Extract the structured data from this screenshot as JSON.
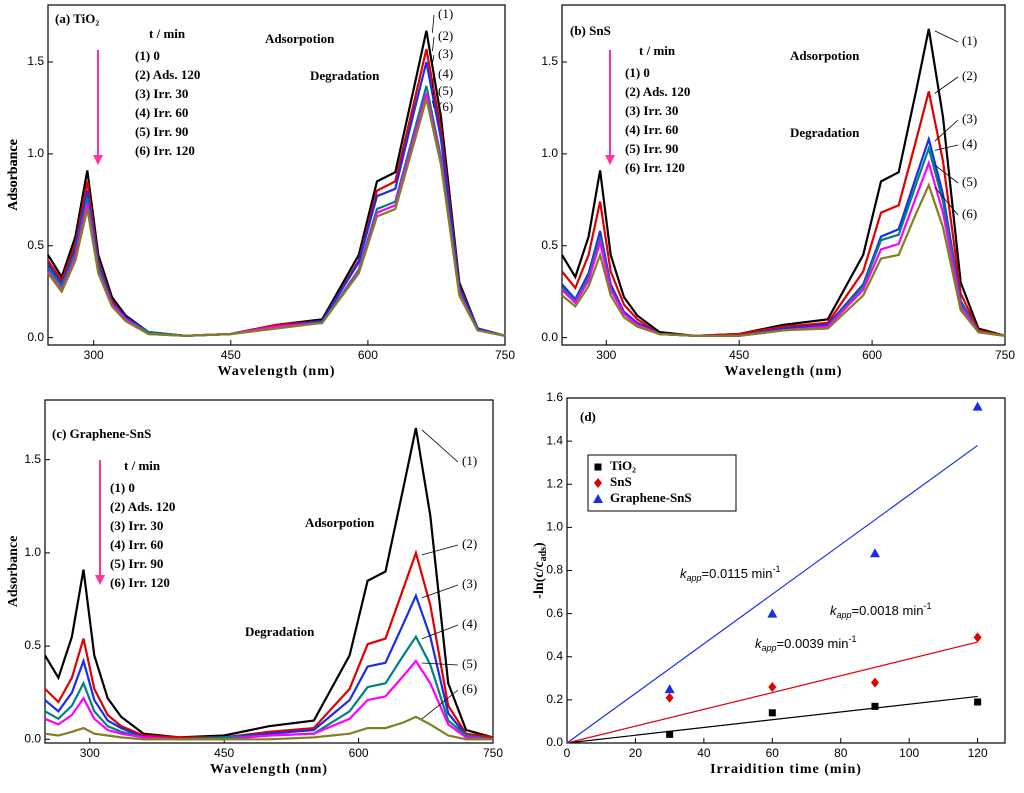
{
  "chart_data": [
    {
      "type": "line",
      "title": "(a) TiO₂",
      "xlabel": "Wavelength (nm)",
      "ylabel": "Adsorbance",
      "x": [
        250,
        265,
        280,
        293,
        305,
        320,
        335,
        360,
        400,
        450,
        500,
        550,
        590,
        610,
        630,
        650,
        664,
        680,
        700,
        720,
        750
      ],
      "xlim": [
        250,
        750
      ],
      "xticks": [
        300,
        450,
        600,
        750
      ],
      "ylim": [
        -0.04,
        1.81
      ],
      "yticks": [
        {
          "value": 0,
          "label": "0.0"
        },
        {
          "value": 0.5,
          "label": "0.5"
        },
        {
          "value": 1,
          "label": "1.0"
        },
        {
          "value": 1.5,
          "label": "1.5"
        }
      ],
      "legend_title": "t / min",
      "annotations": [
        "Adsorpotion",
        "Degradation"
      ],
      "series": [
        {
          "name": "(1) 0",
          "label": "(1)",
          "color": "#000000",
          "values": [
            0.45,
            0.33,
            0.55,
            0.91,
            0.45,
            0.22,
            0.12,
            0.03,
            0.01,
            0.02,
            0.07,
            0.1,
            0.45,
            0.85,
            0.9,
            1.35,
            1.67,
            1.2,
            0.3,
            0.05,
            0.01
          ]
        },
        {
          "name": "(2) Ads. 120",
          "label": "(2)",
          "color": "#e00000",
          "values": [
            0.42,
            0.31,
            0.51,
            0.85,
            0.42,
            0.2,
            0.11,
            0.03,
            0.01,
            0.02,
            0.07,
            0.09,
            0.42,
            0.8,
            0.85,
            1.27,
            1.57,
            1.13,
            0.28,
            0.05,
            0.01
          ]
        },
        {
          "name": "(3) Irr.   30",
          "label": "(3)",
          "color": "#1a2ee6",
          "values": [
            0.4,
            0.29,
            0.48,
            0.8,
            0.4,
            0.19,
            0.11,
            0.03,
            0.01,
            0.02,
            0.06,
            0.09,
            0.41,
            0.77,
            0.81,
            1.22,
            1.5,
            1.08,
            0.27,
            0.05,
            0.01
          ]
        },
        {
          "name": "(4) Irr.   60",
          "label": "(4)",
          "color": "#008080",
          "values": [
            0.38,
            0.28,
            0.46,
            0.76,
            0.38,
            0.18,
            0.1,
            0.03,
            0.01,
            0.02,
            0.06,
            0.08,
            0.37,
            0.7,
            0.74,
            1.11,
            1.37,
            0.98,
            0.25,
            0.04,
            0.01
          ]
        },
        {
          "name": "(5) Irr.   90",
          "label": "(5)",
          "color": "#ff00ff",
          "values": [
            0.36,
            0.26,
            0.44,
            0.73,
            0.36,
            0.18,
            0.1,
            0.02,
            0.01,
            0.02,
            0.06,
            0.08,
            0.36,
            0.68,
            0.72,
            1.08,
            1.33,
            0.96,
            0.24,
            0.04,
            0.01
          ]
        },
        {
          "name": "(6) Irr.   120",
          "label": "(6)",
          "color": "#808020",
          "values": [
            0.35,
            0.25,
            0.42,
            0.7,
            0.35,
            0.17,
            0.09,
            0.02,
            0.01,
            0.02,
            0.05,
            0.08,
            0.35,
            0.66,
            0.7,
            1.05,
            1.3,
            0.94,
            0.23,
            0.04,
            0.01
          ]
        }
      ]
    },
    {
      "type": "line",
      "title": "(b) SnS",
      "xlabel": "Wavelength (nm)",
      "ylabel": "Adsorbance",
      "x": [
        250,
        265,
        280,
        293,
        305,
        320,
        335,
        360,
        400,
        450,
        500,
        550,
        590,
        610,
        630,
        650,
        664,
        680,
        700,
        720,
        750
      ],
      "xlim": [
        250,
        750
      ],
      "xticks": [
        300,
        450,
        600,
        750
      ],
      "ylim": [
        -0.04,
        1.81
      ],
      "yticks": [
        {
          "value": 0,
          "label": "0.0"
        },
        {
          "value": 0.5,
          "label": "0.5"
        },
        {
          "value": 1,
          "label": "1.0"
        },
        {
          "value": 1.5,
          "label": "1.5"
        }
      ],
      "legend_title": "t / min",
      "annotations": [
        "Adsorpotion",
        "Degradation"
      ],
      "series": [
        {
          "name": "(1) 0",
          "label": "(1)",
          "color": "#000000",
          "values": [
            0.45,
            0.33,
            0.55,
            0.91,
            0.45,
            0.22,
            0.12,
            0.03,
            0.01,
            0.02,
            0.07,
            0.1,
            0.45,
            0.85,
            0.9,
            1.35,
            1.68,
            1.2,
            0.3,
            0.05,
            0.01
          ]
        },
        {
          "name": "(2) Ads. 120",
          "label": "(2)",
          "color": "#e00000",
          "values": [
            0.36,
            0.27,
            0.45,
            0.74,
            0.36,
            0.18,
            0.1,
            0.02,
            0.01,
            0.02,
            0.06,
            0.08,
            0.36,
            0.68,
            0.72,
            1.08,
            1.34,
            0.96,
            0.24,
            0.04,
            0.01
          ]
        },
        {
          "name": "(3) Irr.   30",
          "label": "(3)",
          "color": "#1a2ee6",
          "values": [
            0.29,
            0.21,
            0.35,
            0.58,
            0.29,
            0.14,
            0.08,
            0.02,
            0.01,
            0.01,
            0.05,
            0.07,
            0.29,
            0.55,
            0.59,
            0.88,
            1.08,
            0.78,
            0.2,
            0.03,
            0.01
          ]
        },
        {
          "name": "(4) Irr.   60",
          "label": "(4)",
          "color": "#008080",
          "values": [
            0.27,
            0.2,
            0.33,
            0.55,
            0.27,
            0.13,
            0.07,
            0.02,
            0.01,
            0.01,
            0.04,
            0.06,
            0.28,
            0.53,
            0.56,
            0.84,
            1.03,
            0.74,
            0.19,
            0.03,
            0.01
          ]
        },
        {
          "name": "(5) Irr.   90",
          "label": "(5)",
          "color": "#ff00ff",
          "values": [
            0.26,
            0.19,
            0.31,
            0.52,
            0.26,
            0.13,
            0.07,
            0.02,
            0.01,
            0.01,
            0.04,
            0.06,
            0.26,
            0.48,
            0.51,
            0.77,
            0.95,
            0.68,
            0.17,
            0.03,
            0.01
          ]
        },
        {
          "name": "(6) Irr.   120",
          "label": "(6)",
          "color": "#808020",
          "values": [
            0.23,
            0.17,
            0.28,
            0.45,
            0.23,
            0.11,
            0.06,
            0.02,
            0.01,
            0.01,
            0.04,
            0.05,
            0.23,
            0.43,
            0.45,
            0.68,
            0.83,
            0.6,
            0.15,
            0.03,
            0.01
          ]
        }
      ]
    },
    {
      "type": "line",
      "title": "(c) Graphene-SnS",
      "xlabel": "Wavelength (nm)",
      "ylabel": "Adsorbance",
      "x": [
        250,
        265,
        280,
        293,
        305,
        320,
        335,
        360,
        400,
        450,
        500,
        550,
        590,
        610,
        630,
        650,
        664,
        680,
        700,
        720,
        750
      ],
      "xlim": [
        250,
        750
      ],
      "xticks": [
        300,
        450,
        600,
        750
      ],
      "ylim": [
        -0.02,
        1.82
      ],
      "yticks": [
        {
          "value": 0,
          "label": "0.0"
        },
        {
          "value": 0.5,
          "label": "0.5"
        },
        {
          "value": 1,
          "label": "1.0"
        },
        {
          "value": 1.5,
          "label": "1.5"
        }
      ],
      "legend_title": "t / min",
      "annotations": [
        "Adsorpotion",
        "Degradation"
      ],
      "series": [
        {
          "name": "(1) 0",
          "label": "(1)",
          "color": "#000000",
          "values": [
            0.45,
            0.33,
            0.55,
            0.91,
            0.45,
            0.22,
            0.12,
            0.03,
            0.01,
            0.02,
            0.07,
            0.1,
            0.45,
            0.85,
            0.9,
            1.35,
            1.67,
            1.2,
            0.3,
            0.05,
            0.01
          ]
        },
        {
          "name": "(2) Ads. 120",
          "label": "(2)",
          "color": "#e00000",
          "values": [
            0.27,
            0.2,
            0.33,
            0.54,
            0.27,
            0.13,
            0.07,
            0.02,
            0.01,
            0.01,
            0.04,
            0.06,
            0.27,
            0.51,
            0.54,
            0.81,
            1.0,
            0.72,
            0.18,
            0.03,
            0.01
          ]
        },
        {
          "name": "(3) Irr.   30",
          "label": "(3)",
          "color": "#1a2ee6",
          "values": [
            0.21,
            0.15,
            0.25,
            0.42,
            0.21,
            0.1,
            0.06,
            0.01,
            0,
            0.01,
            0.03,
            0.05,
            0.21,
            0.39,
            0.41,
            0.62,
            0.77,
            0.55,
            0.14,
            0.02,
            0
          ]
        },
        {
          "name": "(4) Irr.   60",
          "label": "(4)",
          "color": "#008080",
          "values": [
            0.15,
            0.11,
            0.18,
            0.3,
            0.15,
            0.07,
            0.04,
            0.01,
            0,
            0.01,
            0.02,
            0.03,
            0.15,
            0.28,
            0.3,
            0.45,
            0.55,
            0.4,
            0.1,
            0.02,
            0
          ]
        },
        {
          "name": "(5) Irr.   90",
          "label": "(5)",
          "color": "#ff00ff",
          "values": [
            0.11,
            0.08,
            0.13,
            0.22,
            0.11,
            0.05,
            0.03,
            0.01,
            0,
            0,
            0.02,
            0.03,
            0.11,
            0.21,
            0.23,
            0.34,
            0.42,
            0.3,
            0.08,
            0.01,
            0
          ]
        },
        {
          "name": "(6) Irr.   120",
          "label": "(6)",
          "color": "#808020",
          "values": [
            0.03,
            0.02,
            0.04,
            0.06,
            0.03,
            0.02,
            0.01,
            0,
            0,
            0,
            0,
            0.01,
            0.03,
            0.06,
            0.06,
            0.09,
            0.12,
            0.08,
            0.02,
            0,
            0
          ]
        }
      ]
    },
    {
      "type": "scatter",
      "title": "(d)",
      "xlabel": "Irraidition time (min)",
      "ylabel": [
        "-ln(c/c",
        "ads",
        ")"
      ],
      "xlim": [
        0,
        128
      ],
      "xticks": [
        0,
        20,
        40,
        60,
        80,
        100,
        120
      ],
      "ylim": [
        0,
        1.6
      ],
      "yticks": [
        {
          "value": 0,
          "label": "0.0"
        },
        {
          "value": 0.2,
          "label": "0.2"
        },
        {
          "value": 0.4,
          "label": "0.4"
        },
        {
          "value": 0.6,
          "label": "0.6"
        },
        {
          "value": 0.8,
          "label": "0.8"
        },
        {
          "value": 1,
          "label": "1.0"
        },
        {
          "value": 1.2,
          "label": "1.2"
        },
        {
          "value": 1.4,
          "label": "1.4"
        },
        {
          "value": 1.6,
          "label": "1.6"
        }
      ],
      "series": [
        {
          "name": "TiO₂",
          "color": "#000000",
          "marker": "square",
          "x": [
            30,
            60,
            90,
            120
          ],
          "values": [
            0.04,
            0.14,
            0.17,
            0.19
          ],
          "slope": 0.0018,
          "fit_label": [
            "k",
            "app",
            "=0.0018 min",
            "-1"
          ]
        },
        {
          "name": "SnS",
          "color": "#e00000",
          "marker": "diamond",
          "x": [
            30,
            60,
            90,
            120
          ],
          "values": [
            0.21,
            0.26,
            0.28,
            0.49
          ],
          "slope": 0.0039,
          "fit_label": [
            "k",
            "app",
            "=0.0039 min",
            "-1"
          ]
        },
        {
          "name": "Graphene-SnS",
          "color": "#1a2ee6",
          "marker": "triangle",
          "x": [
            30,
            60,
            90,
            120
          ],
          "values": [
            0.25,
            0.6,
            0.88,
            1.56
          ],
          "slope": 0.0115,
          "fit_label": [
            "k",
            "app",
            "=0.0115 min",
            "-1"
          ]
        }
      ]
    }
  ]
}
